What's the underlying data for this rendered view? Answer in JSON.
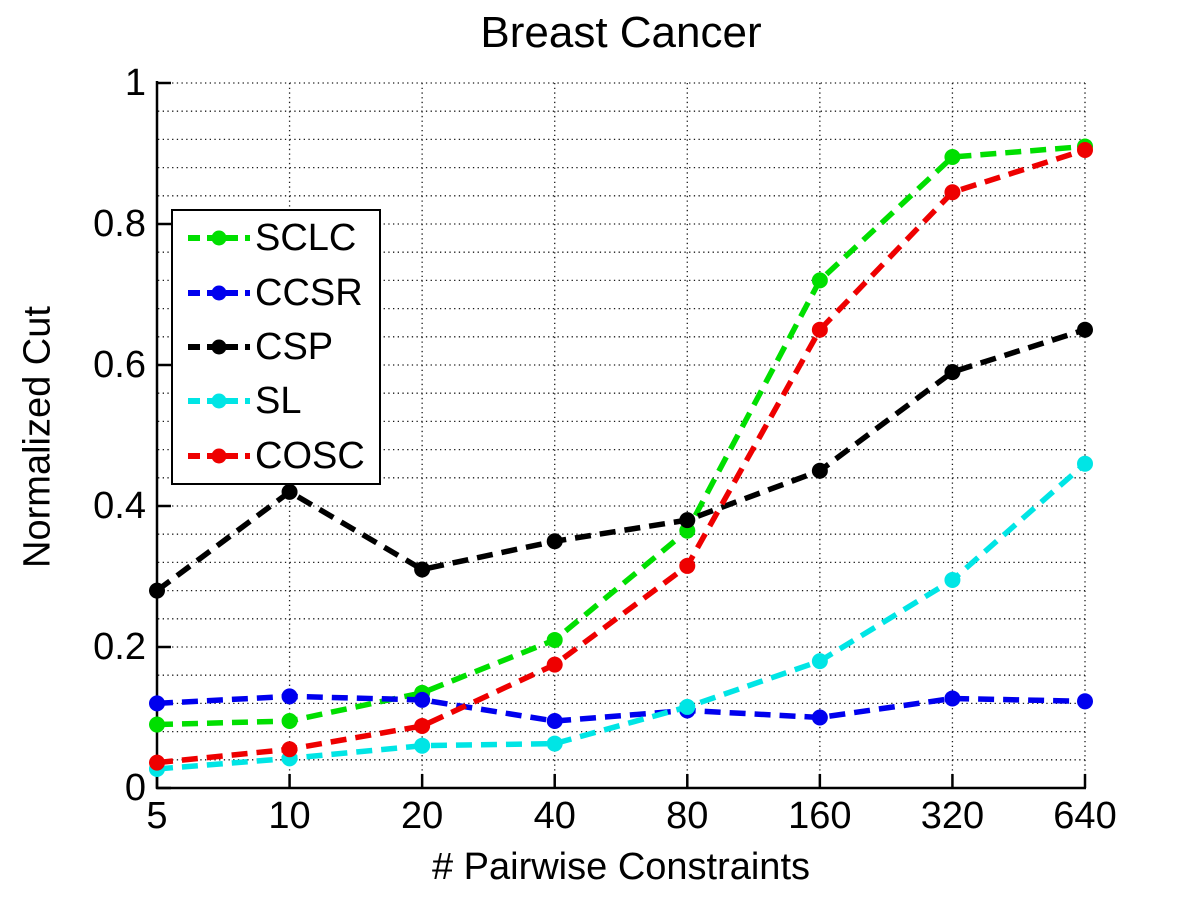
{
  "figure": {
    "title": "Breast Cancer",
    "xlabel": "# Pairwise Constraints",
    "ylabel": "Normalized Cut"
  },
  "chart_data": {
    "type": "line",
    "title": "Breast Cancer",
    "xlabel": "# Pairwise Constraints",
    "ylabel": "Normalized Cut",
    "x_scale": "log2-equal-spacing",
    "x": [
      5,
      10,
      20,
      40,
      80,
      160,
      320,
      640
    ],
    "x_tick_labels": [
      "5",
      "10",
      "20",
      "40",
      "80",
      "160",
      "320",
      "640"
    ],
    "y_ticks": [
      0,
      0.2,
      0.4,
      0.6,
      0.8,
      1
    ],
    "y_tick_labels": [
      "0",
      "0.2",
      "0.4",
      "0.6",
      "0.8",
      "1"
    ],
    "ylim": [
      0,
      1
    ],
    "y_minor_grid_step": 0.04,
    "grid_style": "dotted",
    "grid_color": "#1a1a1a",
    "axis_color": "#000000",
    "line_style": "dashed",
    "marker": "filled-circle",
    "legend_position": "upper-left-inside",
    "series": [
      {
        "name": "SCLC",
        "color": "#00DF00",
        "values": [
          0.09,
          0.095,
          0.135,
          0.21,
          0.365,
          0.72,
          0.895,
          0.91
        ]
      },
      {
        "name": "CCSR",
        "color": "#0000EE",
        "values": [
          0.12,
          0.13,
          0.125,
          0.095,
          0.11,
          0.1,
          0.127,
          0.123
        ]
      },
      {
        "name": "CSP",
        "color": "#000000",
        "values": [
          0.28,
          0.42,
          0.31,
          0.35,
          0.38,
          0.45,
          0.59,
          0.65
        ]
      },
      {
        "name": "SL",
        "color": "#00E5E5",
        "values": [
          0.027,
          0.042,
          0.06,
          0.063,
          0.115,
          0.18,
          0.295,
          0.46
        ]
      },
      {
        "name": "COSC",
        "color": "#EE0000",
        "values": [
          0.036,
          0.055,
          0.088,
          0.175,
          0.315,
          0.65,
          0.845,
          0.905
        ]
      }
    ]
  },
  "layout_note": ""
}
